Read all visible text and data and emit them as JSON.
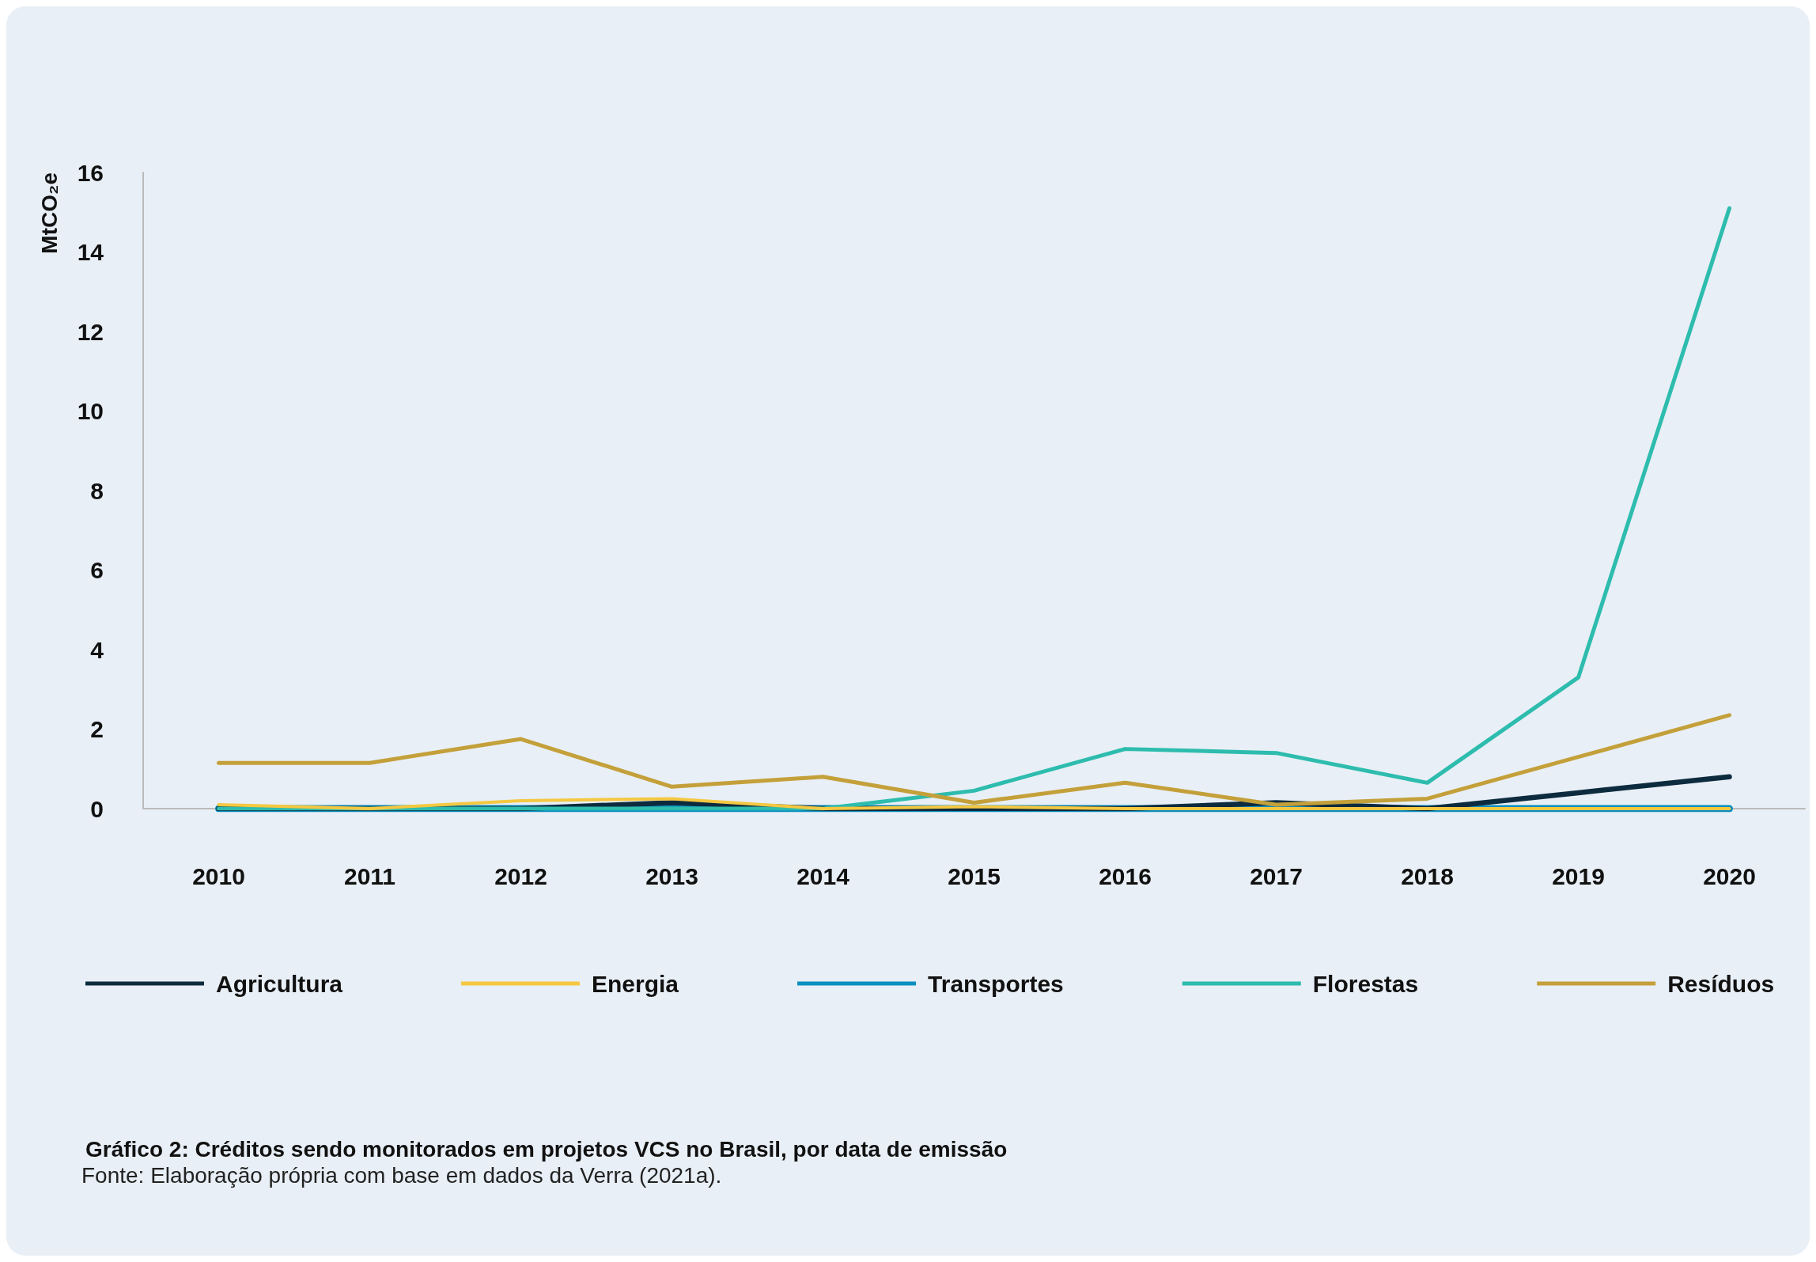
{
  "chart_data": {
    "type": "line",
    "title": "Gráfico 2: Créditos sendo monitorados em projetos VCS no Brasil, por data de emissão",
    "annotations": [
      "Fonte: Elaboração própria com base em dados da Verra (2021a)."
    ],
    "ylabel": "MtCO₂e",
    "categories": [
      "2010",
      "2011",
      "2012",
      "2013",
      "2014",
      "2015",
      "2016",
      "2017",
      "2018",
      "2019",
      "2020"
    ],
    "series": [
      {
        "name": "Agricultura",
        "color": "#0d2b3e",
        "values": [
          0,
          0,
          0,
          0.15,
          0,
          0,
          0,
          0.15,
          0,
          0.4,
          0.8
        ]
      },
      {
        "name": "Energia",
        "color": "#f5c842",
        "values": [
          0.1,
          0,
          0.2,
          0.25,
          0,
          0.05,
          0,
          0,
          0,
          0,
          0
        ]
      },
      {
        "name": "Transportes",
        "color": "#0a8fc0",
        "values": [
          0,
          0,
          0,
          0,
          0,
          0,
          0,
          0,
          0,
          0,
          0
        ]
      },
      {
        "name": "Florestas",
        "color": "#2dbcad",
        "values": [
          0,
          0,
          0,
          0,
          0,
          0.45,
          1.5,
          1.4,
          0.65,
          3.3,
          15.1
        ]
      },
      {
        "name": "Resíduos",
        "color": "#c4a03a",
        "values": [
          1.15,
          1.15,
          1.75,
          0.55,
          0.8,
          0.15,
          0.65,
          0.1,
          0.25,
          1.3,
          2.35
        ]
      }
    ],
    "ylim": [
      0,
      16
    ],
    "yticks": [
      0,
      2,
      4,
      6,
      8,
      10,
      12,
      14,
      16
    ],
    "grid": false,
    "legend": "bottom",
    "marker": "none",
    "line_style": "solid"
  }
}
